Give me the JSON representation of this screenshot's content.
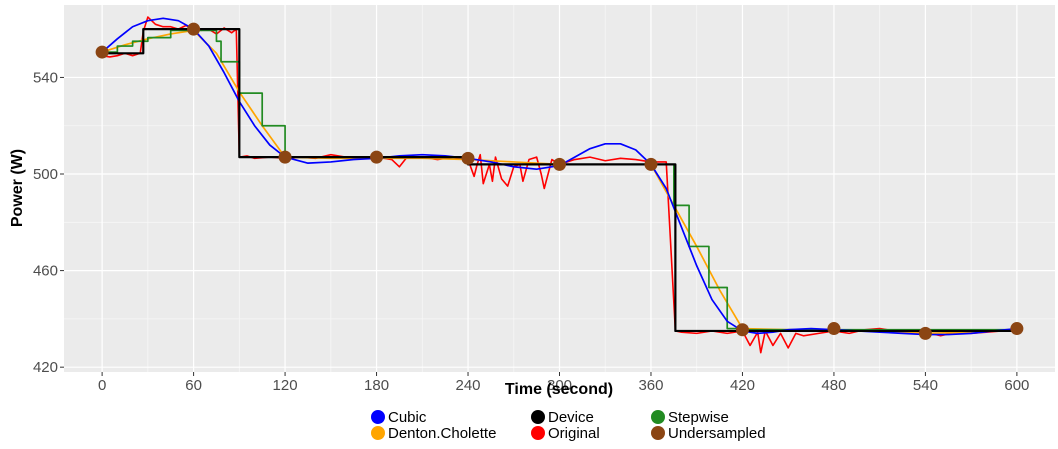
{
  "chart_data": {
    "type": "line",
    "title": "",
    "xlabel": "Time (second)",
    "ylabel": "Power (W)",
    "xlim": [
      -25,
      625
    ],
    "ylim": [
      418,
      570
    ],
    "x_ticks": [
      0,
      60,
      120,
      180,
      240,
      300,
      360,
      420,
      480,
      540,
      600
    ],
    "y_ticks": [
      420,
      460,
      500,
      540
    ],
    "grid": true,
    "legend_position": "bottom",
    "series": [
      {
        "name": "Cubic",
        "color": "#0000ff",
        "style": "line",
        "x": [
          0,
          10,
          20,
          30,
          40,
          50,
          60,
          70,
          80,
          90,
          100,
          110,
          120,
          135,
          150,
          165,
          180,
          195,
          210,
          225,
          240,
          255,
          270,
          285,
          300,
          310,
          320,
          330,
          340,
          350,
          360,
          370,
          380,
          390,
          400,
          410,
          420,
          430,
          440,
          450,
          465,
          480,
          495,
          510,
          525,
          540,
          555,
          570,
          585,
          600
        ],
        "y": [
          550.5,
          556,
          561,
          563.5,
          564.5,
          563.5,
          560,
          553,
          542,
          530,
          520,
          512,
          507,
          504.5,
          505,
          506,
          506.5,
          507.5,
          508,
          507.5,
          506.5,
          505,
          503,
          502,
          503.5,
          507,
          510.5,
          512.5,
          512.5,
          510,
          504,
          494,
          478,
          462,
          448,
          439,
          435,
          434,
          434.5,
          435.5,
          436,
          435.5,
          435,
          434.5,
          434,
          433.5,
          433.5,
          434,
          435,
          436
        ]
      },
      {
        "name": "Denton.Cholette",
        "color": "#ffa500",
        "style": "line",
        "x": [
          0,
          15,
          30,
          45,
          60,
          75,
          90,
          105,
          120,
          150,
          180,
          210,
          240,
          270,
          300,
          330,
          360,
          375,
          390,
          405,
          420,
          450,
          480,
          510,
          540,
          570,
          600
        ],
        "y": [
          550.5,
          553.5,
          556,
          558,
          559.5,
          550,
          534,
          520,
          507,
          506.5,
          506.5,
          506.5,
          506,
          505,
          504,
          504,
          504,
          487,
          470,
          452,
          436,
          435.5,
          435.5,
          435,
          434,
          434.5,
          435.5
        ]
      },
      {
        "name": "Device",
        "color": "#000000",
        "style": "step",
        "x": [
          0,
          27,
          27,
          90,
          90,
          240,
          240,
          376,
          376,
          600
        ],
        "y": [
          550,
          550,
          560,
          560,
          507,
          507,
          504,
          504,
          435,
          435
        ]
      },
      {
        "name": "Original",
        "color": "#ff0000",
        "style": "noisy",
        "x": [
          0,
          5,
          10,
          15,
          20,
          25,
          27,
          30,
          35,
          40,
          45,
          50,
          55,
          60,
          65,
          70,
          75,
          80,
          85,
          88,
          90,
          95,
          100,
          110,
          120,
          130,
          140,
          150,
          160,
          170,
          180,
          190,
          195,
          200,
          210,
          220,
          230,
          240,
          244,
          246,
          248,
          250,
          254,
          256,
          258,
          262,
          266,
          270,
          274,
          276,
          280,
          285,
          288,
          290,
          295,
          300,
          310,
          320,
          330,
          340,
          350,
          360,
          370,
          376,
          380,
          390,
          400,
          410,
          420,
          425,
          430,
          432,
          435,
          440,
          445,
          450,
          455,
          460,
          470,
          480,
          490,
          500,
          510,
          520,
          530,
          540,
          550,
          560,
          570,
          580,
          590,
          600
        ],
        "y": [
          549,
          548.5,
          549,
          550,
          549,
          550,
          559,
          565,
          562,
          561,
          561,
          560,
          561.5,
          560,
          559.5,
          560,
          558,
          560.5,
          558.5,
          560,
          507,
          507.5,
          506.5,
          507,
          506.5,
          507,
          506.5,
          508,
          507,
          506.5,
          507,
          506,
          503,
          507,
          507,
          506,
          507,
          506,
          499,
          504,
          508,
          496,
          504,
          497,
          507,
          498,
          495,
          503,
          504,
          497,
          506,
          507,
          500,
          494,
          506,
          504,
          506,
          507,
          505.5,
          506.5,
          506,
          505,
          505,
          435,
          434.5,
          434,
          435,
          434,
          435,
          429,
          434.5,
          426,
          435,
          429,
          434,
          428,
          434,
          433,
          434,
          435,
          434,
          435.5,
          436,
          435,
          435,
          434.5,
          433,
          434.5,
          434,
          434.5,
          435,
          436
        ]
      },
      {
        "name": "Stepwise",
        "color": "#228b22",
        "style": "step",
        "x": [
          0,
          10,
          10,
          20,
          20,
          30,
          30,
          45,
          45,
          75,
          75,
          78,
          78,
          90,
          90,
          105,
          105,
          120,
          120,
          240,
          240,
          360,
          360,
          375,
          375,
          385,
          385,
          398,
          398,
          410,
          410,
          420,
          420,
          600
        ],
        "y": [
          550.5,
          550.5,
          553,
          553,
          555,
          555,
          556.5,
          556.5,
          559.5,
          559.5,
          555,
          555,
          546.5,
          546.5,
          533.5,
          533.5,
          520,
          520,
          507,
          507,
          504,
          504,
          504,
          504,
          487,
          487,
          470,
          470,
          453,
          453,
          436,
          436,
          435.5,
          435.5
        ]
      },
      {
        "name": "Undersampled",
        "color": "#8b4513",
        "style": "points",
        "x": [
          0,
          60,
          120,
          180,
          240,
          300,
          360,
          420,
          480,
          540,
          600
        ],
        "y": [
          550.5,
          560,
          507,
          507,
          506.5,
          504,
          504,
          435.5,
          436,
          434,
          436
        ]
      }
    ]
  },
  "legend": {
    "row1": [
      "Cubic",
      "Device",
      "Stepwise"
    ],
    "row2": [
      "Denton.Cholette",
      "Original",
      "Undersampled"
    ]
  }
}
